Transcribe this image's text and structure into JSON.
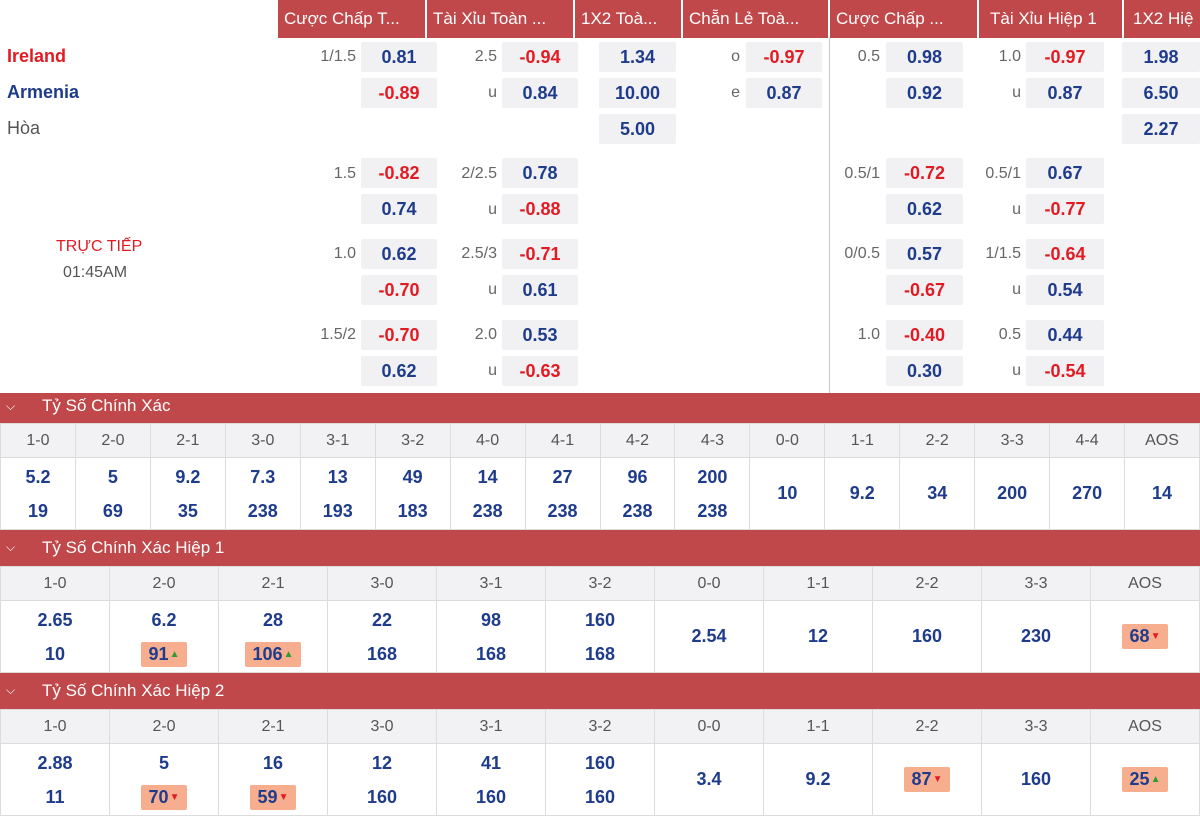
{
  "header": {
    "columns": [
      "Cược Chấp T...",
      "Tài Xỉu Toàn ...",
      "1X2 Toà...",
      "Chẵn Lẻ Toà...",
      "Cược Chấp ...",
      "Tài Xỉu Hiệp 1",
      "1X2 Hiệ"
    ]
  },
  "match": {
    "home": "Ireland",
    "away": "Armenia",
    "draw": "Hòa",
    "status": "TRỰC TIẾP",
    "time": "01:45AM"
  },
  "rows": [
    {
      "hdp_line": "1/1.5",
      "hdp_home": "0.81",
      "hdp_away": "-0.89",
      "ou_line": "2.5",
      "ou_over": "-0.94",
      "ou_under_label": "u",
      "ou_under": "0.84",
      "x12_home": "1.34",
      "x12_away": "10.00",
      "x12_draw": "5.00",
      "oe_o_label": "o",
      "oe_o": "-0.97",
      "oe_e_label": "e",
      "oe_e": "0.87",
      "h1hdp_line": "0.5",
      "h1hdp_home": "0.98",
      "h1hdp_away": "0.92",
      "h1ou_line": "1.0",
      "h1ou_over": "-0.97",
      "h1ou_under_label": "u",
      "h1ou_under": "0.87",
      "h1x12_home": "1.98",
      "h1x12_away": "6.50",
      "h1x12_draw": "2.27"
    },
    {
      "hdp_line": "1.5",
      "hdp_home": "-0.82",
      "hdp_away": "0.74",
      "ou_line": "2/2.5",
      "ou_over": "0.78",
      "ou_under_label": "u",
      "ou_under": "-0.88",
      "h1hdp_line": "0.5/1",
      "h1hdp_home": "-0.72",
      "h1hdp_away": "0.62",
      "h1ou_line": "0.5/1",
      "h1ou_over": "0.67",
      "h1ou_under_label": "u",
      "h1ou_under": "-0.77"
    },
    {
      "hdp_line": "1.0",
      "hdp_home": "0.62",
      "hdp_away": "-0.70",
      "ou_line": "2.5/3",
      "ou_over": "-0.71",
      "ou_under_label": "u",
      "ou_under": "0.61",
      "h1hdp_line": "0/0.5",
      "h1hdp_home": "0.57",
      "h1hdp_away": "-0.67",
      "h1ou_line": "1/1.5",
      "h1ou_over": "-0.64",
      "h1ou_under_label": "u",
      "h1ou_under": "0.54"
    },
    {
      "hdp_line": "1.5/2",
      "hdp_home": "-0.70",
      "hdp_away": "0.62",
      "ou_line": "2.0",
      "ou_over": "0.53",
      "ou_under_label": "u",
      "ou_under": "-0.63",
      "h1hdp_line": "1.0",
      "h1hdp_home": "-0.40",
      "h1hdp_away": "0.30",
      "h1ou_line": "0.5",
      "h1ou_over": "0.44",
      "h1ou_under_label": "u",
      "h1ou_under": "-0.54"
    }
  ],
  "exact_score": {
    "title": "Tỷ Số Chính Xác",
    "cols": [
      {
        "label": "1-0",
        "top": "5.2",
        "bottom": "19"
      },
      {
        "label": "2-0",
        "top": "5",
        "bottom": "69"
      },
      {
        "label": "2-1",
        "top": "9.2",
        "bottom": "35"
      },
      {
        "label": "3-0",
        "top": "7.3",
        "bottom": "238"
      },
      {
        "label": "3-1",
        "top": "13",
        "bottom": "193"
      },
      {
        "label": "3-2",
        "top": "49",
        "bottom": "183"
      },
      {
        "label": "4-0",
        "top": "14",
        "bottom": "238"
      },
      {
        "label": "4-1",
        "top": "27",
        "bottom": "238"
      },
      {
        "label": "4-2",
        "top": "96",
        "bottom": "238"
      },
      {
        "label": "4-3",
        "top": "200",
        "bottom": "238"
      },
      {
        "label": "0-0",
        "single": "10"
      },
      {
        "label": "1-1",
        "single": "9.2"
      },
      {
        "label": "2-2",
        "single": "34"
      },
      {
        "label": "3-3",
        "single": "200"
      },
      {
        "label": "4-4",
        "single": "270"
      },
      {
        "label": "AOS",
        "single": "14"
      }
    ]
  },
  "exact_score_h1": {
    "title": "Tỷ Số Chính Xác Hiệp 1",
    "cols": [
      {
        "label": "1-0",
        "top": "2.65",
        "bottom": "10"
      },
      {
        "label": "2-0",
        "top": "6.2",
        "bottom": "91",
        "bottom_change": "up"
      },
      {
        "label": "2-1",
        "top": "28",
        "bottom": "106",
        "bottom_change": "up"
      },
      {
        "label": "3-0",
        "top": "22",
        "bottom": "168"
      },
      {
        "label": "3-1",
        "top": "98",
        "bottom": "168"
      },
      {
        "label": "3-2",
        "top": "160",
        "bottom": "168"
      },
      {
        "label": "0-0",
        "single": "2.54"
      },
      {
        "label": "1-1",
        "single": "12"
      },
      {
        "label": "2-2",
        "single": "160"
      },
      {
        "label": "3-3",
        "single": "230"
      },
      {
        "label": "AOS",
        "single": "68",
        "single_change": "down"
      }
    ]
  },
  "exact_score_h2": {
    "title": "Tỷ Số Chính Xác Hiệp 2",
    "cols": [
      {
        "label": "1-0",
        "top": "2.88",
        "bottom": "11"
      },
      {
        "label": "2-0",
        "top": "5",
        "bottom": "70",
        "bottom_change": "down"
      },
      {
        "label": "2-1",
        "top": "16",
        "bottom": "59",
        "bottom_change": "down"
      },
      {
        "label": "3-0",
        "top": "12",
        "bottom": "160"
      },
      {
        "label": "3-1",
        "top": "41",
        "bottom": "160"
      },
      {
        "label": "3-2",
        "top": "160",
        "bottom": "160"
      },
      {
        "label": "0-0",
        "single": "3.4"
      },
      {
        "label": "1-1",
        "single": "9.2"
      },
      {
        "label": "2-2",
        "single": "87",
        "single_change": "down"
      },
      {
        "label": "3-3",
        "single": "160"
      },
      {
        "label": "AOS",
        "single": "25",
        "single_change": "up"
      }
    ]
  },
  "icons": {
    "collapse": "chevron-down-icon",
    "up": "arrow-up-icon",
    "down": "arrow-down-icon"
  },
  "colors": {
    "header_bg": "#c0484a",
    "positive": "#1f3c8c",
    "negative": "#e21b23",
    "changed_bg": "#f6ae8f"
  }
}
